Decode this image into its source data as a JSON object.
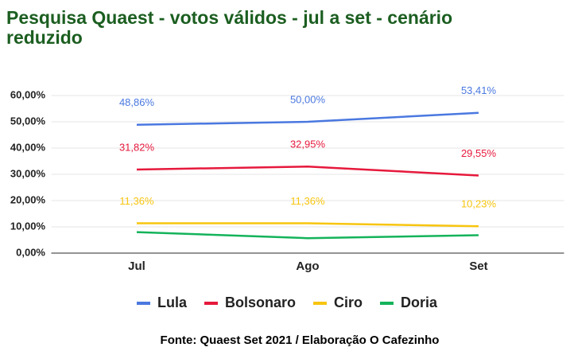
{
  "chart_data": {
    "type": "line",
    "title": "Pesquisa Quaest - votos válidos - jul a set - cenário reduzido",
    "source": "Fonte: Quaest Set 2021 / Elaboração O Cafezinho",
    "categories": [
      "Jul",
      "Ago",
      "Set"
    ],
    "series": [
      {
        "name": "Lula",
        "color": "#4a78e0",
        "values": [
          48.86,
          50.0,
          53.41
        ],
        "value_labels": [
          "48,86%",
          "50,00%",
          "53,41%"
        ]
      },
      {
        "name": "Bolsonaro",
        "color": "#e6193c",
        "values": [
          31.82,
          32.95,
          29.55
        ],
        "value_labels": [
          "31,82%",
          "32,95%",
          "29,55%"
        ]
      },
      {
        "name": "Ciro",
        "color": "#f7c50f",
        "values": [
          11.36,
          11.36,
          10.23
        ],
        "value_labels": [
          "11,36%",
          "11,36%",
          "10,23%"
        ]
      },
      {
        "name": "Doria",
        "color": "#14b35a",
        "values": [
          8.0,
          5.7,
          6.8
        ]
      }
    ],
    "ylim": [
      0,
      60
    ],
    "yticks": [
      {
        "value": 0,
        "label": "0,00%"
      },
      {
        "value": 10,
        "label": "10,00%"
      },
      {
        "value": 20,
        "label": "20,00%"
      },
      {
        "value": 30,
        "label": "30,00%"
      },
      {
        "value": 40,
        "label": "40,00%"
      },
      {
        "value": 50,
        "label": "50,00%"
      },
      {
        "value": 60,
        "label": "60,00%"
      }
    ],
    "grid": true,
    "legend": "bottom"
  }
}
